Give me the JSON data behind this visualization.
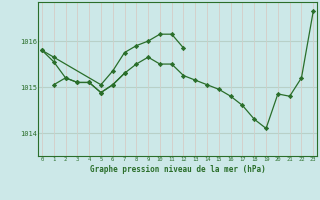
{
  "title": "Graphe pression niveau de la mer (hPa)",
  "bg_color": "#cce8e8",
  "grid_color_v": "#c8d8d0",
  "grid_color_h": "#b8d0c8",
  "grid_color_red": "#e8c0c0",
  "line_color": "#2a6e2a",
  "marker_color": "#2a6e2a",
  "ylim": [
    1013.5,
    1016.85
  ],
  "yticks": [
    1014,
    1015,
    1016
  ],
  "xlim": [
    -0.3,
    23.3
  ],
  "xticks": [
    0,
    1,
    2,
    3,
    4,
    5,
    6,
    7,
    8,
    9,
    10,
    11,
    12,
    13,
    14,
    15,
    16,
    17,
    18,
    19,
    20,
    21,
    22,
    23
  ],
  "series": [
    {
      "x": [
        0,
        1,
        5,
        6,
        7,
        8,
        9,
        10,
        11,
        12
      ],
      "y": [
        1015.8,
        1015.65,
        1015.05,
        1015.35,
        1015.75,
        1015.9,
        1016.0,
        1016.15,
        1016.15,
        1015.85
      ]
    },
    {
      "x": [
        0,
        1,
        2,
        3,
        4,
        5,
        6,
        7,
        8,
        9,
        10,
        11,
        12,
        13,
        14,
        15,
        16,
        17,
        18,
        19,
        20,
        21,
        22,
        23
      ],
      "y": [
        1015.8,
        1015.55,
        1015.2,
        1015.1,
        1015.1,
        1014.88,
        1015.05,
        1015.3,
        1015.5,
        1015.65,
        1015.5,
        1015.5,
        1015.25,
        1015.15,
        1015.05,
        1014.95,
        1014.8,
        1014.6,
        1014.3,
        1014.1,
        1014.85,
        1014.8,
        1015.2,
        1016.65
      ]
    },
    {
      "x": [
        1,
        2,
        3,
        4,
        5,
        6,
        7
      ],
      "y": [
        1015.05,
        1015.2,
        1015.1,
        1015.1,
        1014.88,
        1015.05,
        1015.3
      ]
    }
  ]
}
